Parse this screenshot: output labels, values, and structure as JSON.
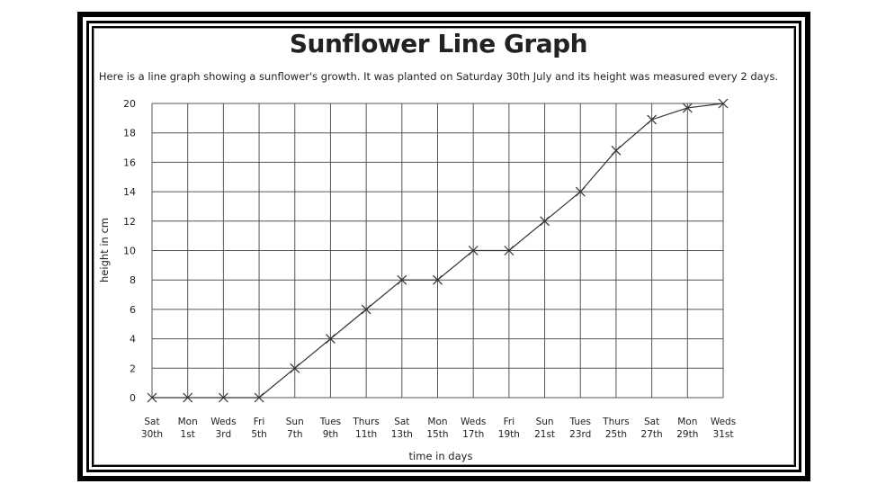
{
  "title": "Sunflower Line Graph",
  "subtitle": "Here is a line graph showing a sunflower's growth. It was planted on Saturday 30th July and its height was measured every 2 days.",
  "chart_data": {
    "type": "line",
    "xlabel": "time in days",
    "ylabel": "height in cm",
    "ylim": [
      0,
      20
    ],
    "y_ticks": [
      0,
      2,
      4,
      6,
      8,
      10,
      12,
      14,
      16,
      18,
      20
    ],
    "grid": true,
    "categories": [
      [
        "Sat",
        "30th"
      ],
      [
        "Mon",
        "1st"
      ],
      [
        "Weds",
        "3rd"
      ],
      [
        "Fri",
        "5th"
      ],
      [
        "Sun",
        "7th"
      ],
      [
        "Tues",
        "9th"
      ],
      [
        "Thurs",
        "11th"
      ],
      [
        "Sat",
        "13th"
      ],
      [
        "Mon",
        "15th"
      ],
      [
        "Weds",
        "17th"
      ],
      [
        "Fri",
        "19th"
      ],
      [
        "Sun",
        "21st"
      ],
      [
        "Tues",
        "23rd"
      ],
      [
        "Thurs",
        "25th"
      ],
      [
        "Sat",
        "27th"
      ],
      [
        "Mon",
        "29th"
      ],
      [
        "Weds",
        "31st"
      ]
    ],
    "values": [
      0,
      0,
      0,
      0,
      2,
      4,
      6,
      8,
      8,
      10,
      10,
      12,
      14,
      16.8,
      18.9,
      19.7,
      20
    ],
    "colors": {
      "line": "#333333",
      "grid": "#555555",
      "marker": "#333333"
    }
  }
}
